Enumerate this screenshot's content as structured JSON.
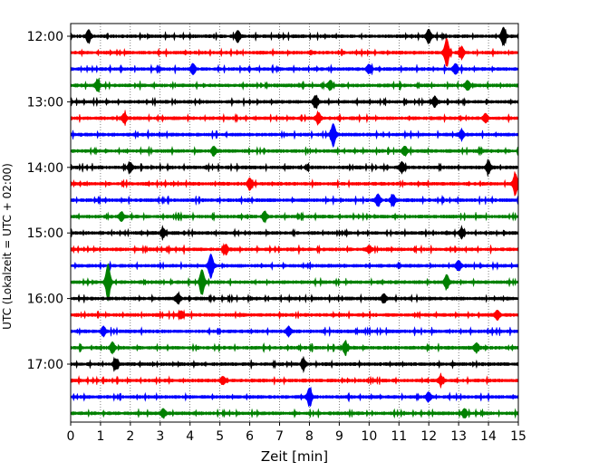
{
  "chart_data": {
    "type": "line",
    "title": "",
    "xlabel": "Zeit  [min]",
    "ylabel": "UTC (Lokalzeit = UTC + 02:00)",
    "xlim": [
      0,
      15
    ],
    "x_ticks": [
      0,
      1,
      2,
      3,
      4,
      5,
      6,
      7,
      8,
      9,
      10,
      11,
      12,
      13,
      14,
      15
    ],
    "x_tick_labels": [
      "0",
      "1",
      "2",
      "3",
      "4",
      "5",
      "6",
      "7",
      "8",
      "9",
      "10",
      "11",
      "12",
      "13",
      "14",
      "15"
    ],
    "y_tick_labels": [
      "12:00",
      "13:00",
      "14:00",
      "15:00",
      "16:00",
      "17:00"
    ],
    "y_tick_trace_index": [
      0,
      4,
      8,
      12,
      16,
      20
    ],
    "trace_interval_min": 15,
    "grid": "vertical dotted lines at each minute",
    "legend": "none",
    "color_cycle": [
      "#000000",
      "#ff0000",
      "#0000ff",
      "#008000"
    ],
    "traces": [
      {
        "start": "12:00",
        "color": "#000000",
        "events": [
          [
            0.6,
            0.4
          ],
          [
            5.6,
            0.35
          ],
          [
            12.0,
            0.45
          ],
          [
            14.5,
            0.6
          ]
        ]
      },
      {
        "start": "12:15",
        "color": "#ff0000",
        "events": [
          [
            12.6,
            1.0
          ],
          [
            13.1,
            0.4
          ]
        ]
      },
      {
        "start": "12:30",
        "color": "#0000ff",
        "events": [
          [
            4.1,
            0.35
          ],
          [
            10.0,
            0.3
          ],
          [
            12.9,
            0.35
          ]
        ]
      },
      {
        "start": "12:45",
        "color": "#008000",
        "events": [
          [
            0.9,
            0.35
          ],
          [
            8.7,
            0.3
          ],
          [
            13.3,
            0.3
          ]
        ]
      },
      {
        "start": "13:00",
        "color": "#000000",
        "events": [
          [
            8.2,
            0.4
          ],
          [
            12.2,
            0.35
          ]
        ]
      },
      {
        "start": "13:15",
        "color": "#ff0000",
        "events": [
          [
            1.8,
            0.3
          ],
          [
            8.3,
            0.35
          ],
          [
            13.9,
            0.3
          ]
        ]
      },
      {
        "start": "13:30",
        "color": "#0000ff",
        "events": [
          [
            8.8,
            0.75
          ],
          [
            13.1,
            0.3
          ]
        ]
      },
      {
        "start": "13:45",
        "color": "#008000",
        "events": [
          [
            4.8,
            0.3
          ],
          [
            11.2,
            0.3
          ]
        ]
      },
      {
        "start": "14:00",
        "color": "#000000",
        "events": [
          [
            2.0,
            0.3
          ],
          [
            11.1,
            0.35
          ],
          [
            14.0,
            0.35
          ]
        ]
      },
      {
        "start": "14:15",
        "color": "#ff0000",
        "events": [
          [
            6.0,
            0.35
          ],
          [
            14.9,
            0.7
          ]
        ]
      },
      {
        "start": "14:30",
        "color": "#0000ff",
        "events": [
          [
            10.3,
            0.4
          ],
          [
            10.8,
            0.35
          ]
        ]
      },
      {
        "start": "14:45",
        "color": "#008000",
        "events": [
          [
            1.7,
            0.3
          ],
          [
            6.5,
            0.35
          ]
        ]
      },
      {
        "start": "15:00",
        "color": "#000000",
        "events": [
          [
            3.1,
            0.3
          ],
          [
            13.1,
            0.3
          ]
        ]
      },
      {
        "start": "15:15",
        "color": "#ff0000",
        "events": [
          [
            5.2,
            0.3
          ],
          [
            10.0,
            0.25
          ]
        ]
      },
      {
        "start": "15:30",
        "color": "#0000ff",
        "events": [
          [
            4.7,
            0.8
          ],
          [
            13.0,
            0.35
          ]
        ]
      },
      {
        "start": "15:45",
        "color": "#008000",
        "events": [
          [
            1.25,
            1.3
          ],
          [
            4.4,
            0.9
          ],
          [
            12.6,
            0.5
          ]
        ]
      },
      {
        "start": "16:00",
        "color": "#000000",
        "events": [
          [
            3.6,
            0.3
          ],
          [
            10.5,
            0.3
          ]
        ]
      },
      {
        "start": "16:15",
        "color": "#ff0000",
        "events": [
          [
            3.7,
            0.25
          ],
          [
            14.3,
            0.3
          ]
        ]
      },
      {
        "start": "16:30",
        "color": "#0000ff",
        "events": [
          [
            1.1,
            0.3
          ],
          [
            7.3,
            0.3
          ]
        ]
      },
      {
        "start": "16:45",
        "color": "#008000",
        "events": [
          [
            1.4,
            0.35
          ],
          [
            9.2,
            0.4
          ],
          [
            13.6,
            0.3
          ]
        ]
      },
      {
        "start": "17:00",
        "color": "#000000",
        "events": [
          [
            1.5,
            0.35
          ],
          [
            7.8,
            0.3
          ]
        ]
      },
      {
        "start": "17:15",
        "color": "#ff0000",
        "events": [
          [
            5.1,
            0.25
          ],
          [
            12.4,
            0.3
          ]
        ]
      },
      {
        "start": "17:30",
        "color": "#0000ff",
        "events": [
          [
            8.0,
            0.6
          ],
          [
            12.0,
            0.3
          ]
        ]
      },
      {
        "start": "17:45",
        "color": "#008000",
        "events": [
          [
            3.1,
            0.3
          ],
          [
            13.2,
            0.3
          ]
        ]
      }
    ]
  }
}
